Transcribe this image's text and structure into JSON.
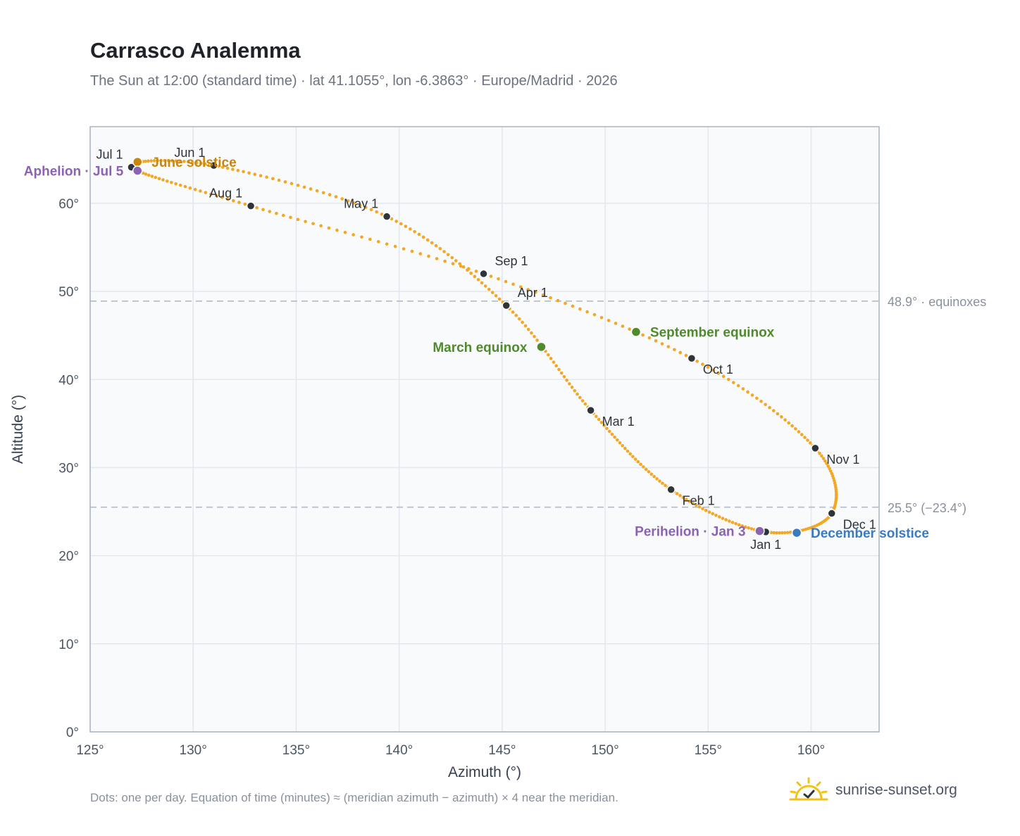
{
  "title": "Carrasco Analemma",
  "subtitle": "The Sun at 12:00 (standard time) · lat 41.1055°, lon -6.3863° · Europe/Madrid · 2026",
  "footnote": "Dots: one per day. Equation of time (minutes) ≈ (meridian azimuth − azimuth) × 4 near the meridian.",
  "brand": {
    "name": "sunrise-sunset.org",
    "logo_icon": "sun-check-icon"
  },
  "colors": {
    "curve": "#f5a623",
    "month_marker": "#2f343b",
    "solstice_june": "#c8860b",
    "solstice_december": "#3a7bbf",
    "equinox": "#4f8a2b",
    "apsis": "#8c62b3",
    "reference_line": "#b6c0cc",
    "plot_bg": "#f8fafc",
    "grid": "#e3e8ee"
  },
  "chart_data": {
    "type": "scatter",
    "xlabel": "Azimuth (°)",
    "ylabel": "Altitude (°)",
    "xlim": [
      125,
      163.3
    ],
    "ylim": [
      0,
      68.7
    ],
    "xticks": [
      125,
      130,
      135,
      140,
      145,
      150,
      155,
      160
    ],
    "yticks": [
      0,
      10,
      20,
      30,
      40,
      50,
      60
    ],
    "tick_suffix": "°",
    "grid": true,
    "path": [
      {
        "date": "Jan 1",
        "az": 157.8,
        "alt": 22.7
      },
      {
        "date": "Feb 1",
        "az": 153.2,
        "alt": 27.5
      },
      {
        "date": "Mar 1",
        "az": 149.3,
        "alt": 36.5
      },
      {
        "date": "Apr 1",
        "az": 145.2,
        "alt": 48.4
      },
      {
        "date": "May 1",
        "az": 139.4,
        "alt": 58.5
      },
      {
        "date": "Jun 1",
        "az": 131.0,
        "alt": 64.3
      },
      {
        "date": "Jul 1",
        "az": 127.0,
        "alt": 64.1
      },
      {
        "date": "Aug 1",
        "az": 132.8,
        "alt": 59.7
      },
      {
        "date": "Sep 1",
        "az": 144.1,
        "alt": 52.0
      },
      {
        "date": "Oct 1",
        "az": 154.2,
        "alt": 42.4
      },
      {
        "date": "Nov 1",
        "az": 160.2,
        "alt": 32.2
      },
      {
        "date": "Dec 1",
        "az": 161.0,
        "alt": 24.8
      }
    ],
    "month_markers": [
      {
        "label": "Jan 1",
        "az": 157.8,
        "alt": 22.7,
        "label_pos": "below"
      },
      {
        "label": "Feb 1",
        "az": 153.2,
        "alt": 27.5,
        "label_pos": "below-right"
      },
      {
        "label": "Mar 1",
        "az": 149.3,
        "alt": 36.5,
        "label_pos": "below-right"
      },
      {
        "label": "Apr 1",
        "az": 145.2,
        "alt": 48.4,
        "label_pos": "above-right"
      },
      {
        "label": "May 1",
        "az": 139.4,
        "alt": 58.5,
        "label_pos": "above-left"
      },
      {
        "label": "Jun 1",
        "az": 131.0,
        "alt": 64.3,
        "label_pos": "above-left"
      },
      {
        "label": "Jul 1",
        "az": 127.0,
        "alt": 64.1,
        "label_pos": "above-left"
      },
      {
        "label": "Aug 1",
        "az": 132.8,
        "alt": 59.7,
        "label_pos": "above-left"
      },
      {
        "label": "Sep 1",
        "az": 144.1,
        "alt": 52.0,
        "label_pos": "above-right"
      },
      {
        "label": "Oct 1",
        "az": 154.2,
        "alt": 42.4,
        "label_pos": "below-right"
      },
      {
        "label": "Nov 1",
        "az": 160.2,
        "alt": 32.2,
        "label_pos": "below-right"
      },
      {
        "label": "Dec 1",
        "az": 161.0,
        "alt": 24.8,
        "label_pos": "below-right"
      }
    ],
    "events": [
      {
        "label": "June solstice",
        "az": 127.3,
        "alt": 64.7,
        "color_key": "solstice_june",
        "label_side": "right"
      },
      {
        "label": "December solstice",
        "az": 159.3,
        "alt": 22.6,
        "color_key": "solstice_december",
        "label_side": "right"
      },
      {
        "label": "March equinox",
        "az": 146.9,
        "alt": 43.7,
        "color_key": "equinox",
        "label_side": "left"
      },
      {
        "label": "September equinox",
        "az": 151.5,
        "alt": 45.4,
        "color_key": "equinox",
        "label_side": "right"
      },
      {
        "label": "Aphelion · Jul 5",
        "az": 127.3,
        "alt": 63.7,
        "color_key": "apsis",
        "label_side": "left"
      },
      {
        "label": "Perihelion · Jan 3",
        "az": 157.5,
        "alt": 22.8,
        "color_key": "apsis",
        "label_side": "left"
      }
    ],
    "reference_lines": [
      {
        "alt": 48.9,
        "label": "48.9° · equinoxes"
      },
      {
        "alt": 25.5,
        "label": "25.5° (−23.4°)"
      }
    ]
  }
}
